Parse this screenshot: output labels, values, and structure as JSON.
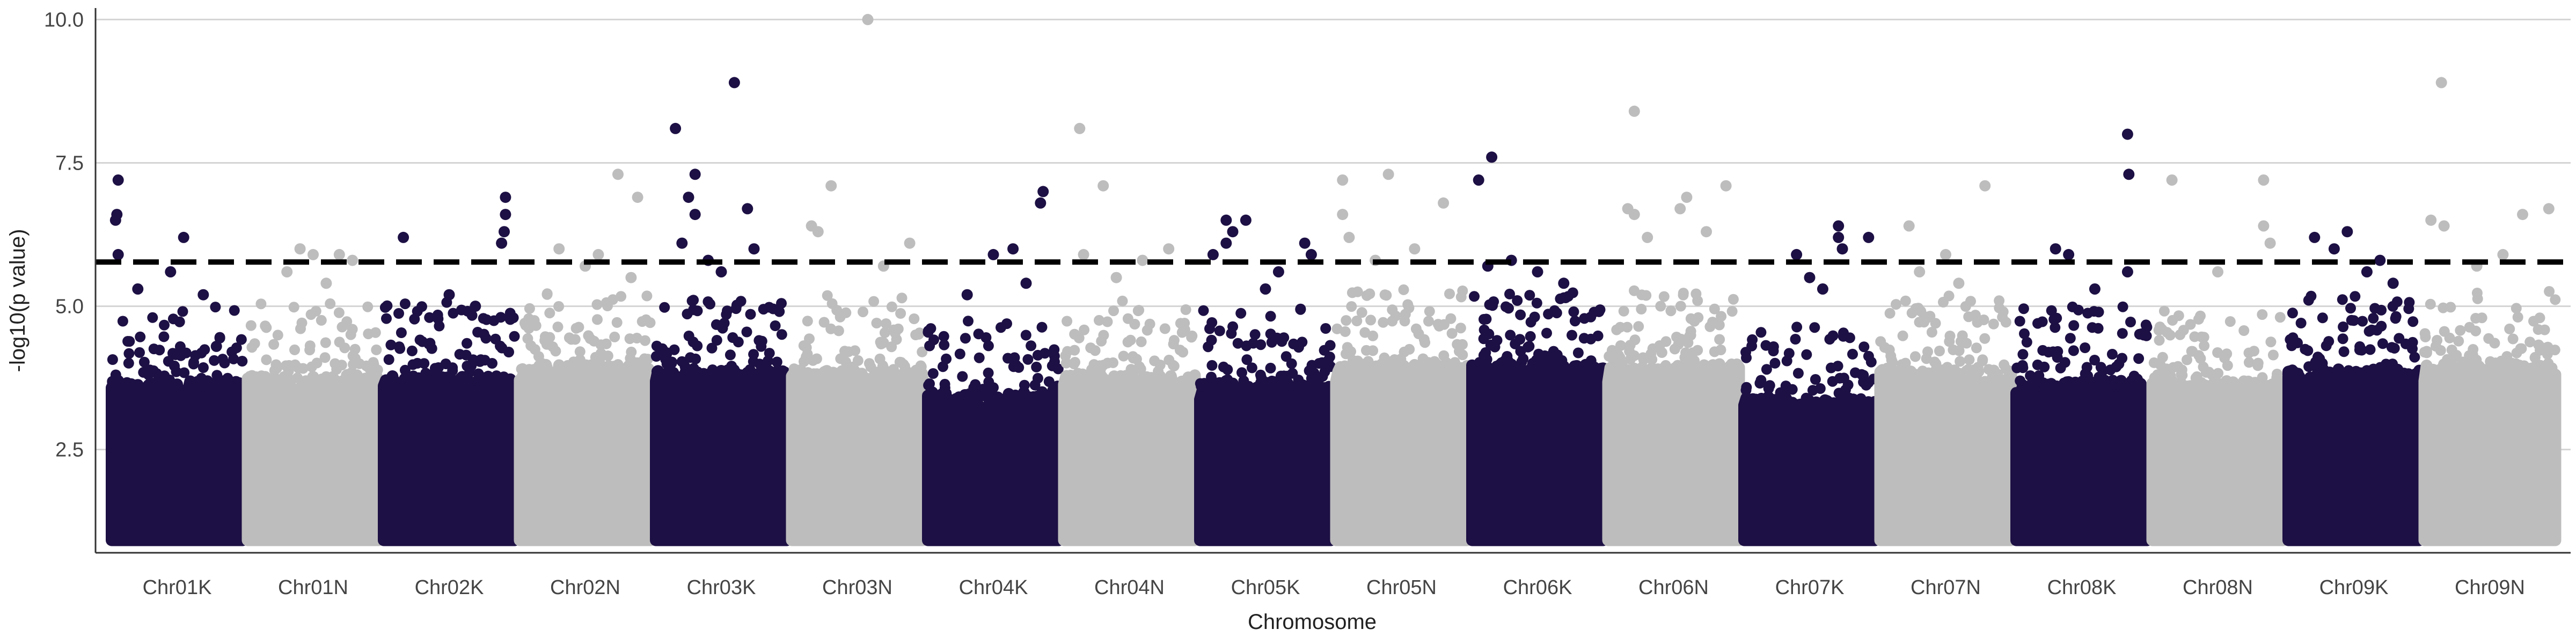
{
  "chart_data": {
    "type": "scatter",
    "title": "",
    "xlabel": "Chromosome",
    "ylabel": "-log10(p value)",
    "ylim": [
      0.7,
      10.2
    ],
    "yticks": [
      2.5,
      5.0,
      7.5,
      10.0
    ],
    "ytick_labels": [
      "2.5",
      "5.0",
      "7.5",
      "10.0"
    ],
    "threshold": 5.77,
    "grid": "horizontal major lines",
    "legend": "none",
    "colors": {
      "K": "#1d1044",
      "N": "#bdbdbd",
      "threshold_line": "#000000"
    },
    "chromosomes": [
      {
        "name": "Chr01K",
        "bulk_max": 3.6,
        "peaks": [
          [
            0.05,
            7.2
          ],
          [
            0.04,
            6.6
          ],
          [
            0.03,
            6.5
          ],
          [
            0.05,
            5.9
          ],
          [
            0.55,
            6.2
          ],
          [
            0.45,
            5.6
          ],
          [
            0.2,
            5.3
          ],
          [
            0.7,
            5.2
          ],
          [
            0.8,
            4.3
          ]
        ]
      },
      {
        "name": "Chr01N",
        "bulk_max": 3.7,
        "peaks": [
          [
            0.4,
            6.0
          ],
          [
            0.5,
            5.9
          ],
          [
            0.7,
            5.9
          ],
          [
            0.8,
            5.8
          ],
          [
            0.3,
            5.6
          ],
          [
            0.6,
            5.4
          ]
        ]
      },
      {
        "name": "Chr02K",
        "bulk_max": 3.7,
        "peaks": [
          [
            0.15,
            6.2
          ],
          [
            0.93,
            6.9
          ],
          [
            0.93,
            6.6
          ],
          [
            0.92,
            6.3
          ],
          [
            0.9,
            6.1
          ],
          [
            0.5,
            5.2
          ],
          [
            0.7,
            5.0
          ]
        ]
      },
      {
        "name": "Chr02N",
        "bulk_max": 3.9,
        "peaks": [
          [
            0.75,
            7.3
          ],
          [
            0.9,
            6.9
          ],
          [
            0.3,
            6.0
          ],
          [
            0.6,
            5.9
          ],
          [
            0.5,
            5.7
          ],
          [
            0.85,
            5.5
          ]
        ]
      },
      {
        "name": "Chr03K",
        "bulk_max": 3.8,
        "peaks": [
          [
            0.15,
            8.1
          ],
          [
            0.6,
            8.9
          ],
          [
            0.3,
            7.3
          ],
          [
            0.25,
            6.9
          ],
          [
            0.3,
            6.6
          ],
          [
            0.7,
            6.7
          ],
          [
            0.2,
            6.1
          ],
          [
            0.75,
            6.0
          ],
          [
            0.4,
            5.8
          ],
          [
            0.5,
            5.6
          ]
        ]
      },
      {
        "name": "Chr03N",
        "bulk_max": 3.8,
        "peaks": [
          [
            0.58,
            10.0
          ],
          [
            0.3,
            7.1
          ],
          [
            0.15,
            6.4
          ],
          [
            0.2,
            6.3
          ],
          [
            0.9,
            6.1
          ],
          [
            0.7,
            5.7
          ]
        ]
      },
      {
        "name": "Chr04K",
        "bulk_max": 3.4,
        "peaks": [
          [
            0.88,
            7.0
          ],
          [
            0.86,
            6.8
          ],
          [
            0.65,
            6.0
          ],
          [
            0.5,
            5.9
          ],
          [
            0.3,
            5.2
          ],
          [
            0.75,
            5.4
          ]
        ]
      },
      {
        "name": "Chr04N",
        "bulk_max": 3.7,
        "peaks": [
          [
            0.12,
            8.1
          ],
          [
            0.3,
            7.1
          ],
          [
            0.15,
            5.9
          ],
          [
            0.8,
            6.0
          ],
          [
            0.6,
            5.8
          ],
          [
            0.4,
            5.5
          ]
        ]
      },
      {
        "name": "Chr05K",
        "bulk_max": 3.6,
        "peaks": [
          [
            0.2,
            6.5
          ],
          [
            0.35,
            6.5
          ],
          [
            0.25,
            6.3
          ],
          [
            0.2,
            6.1
          ],
          [
            0.8,
            6.1
          ],
          [
            0.85,
            5.9
          ],
          [
            0.1,
            5.9
          ],
          [
            0.6,
            5.6
          ],
          [
            0.5,
            5.3
          ]
        ]
      },
      {
        "name": "Chr05N",
        "bulk_max": 3.9,
        "peaks": [
          [
            0.05,
            7.2
          ],
          [
            0.4,
            7.3
          ],
          [
            0.82,
            6.8
          ],
          [
            0.05,
            6.6
          ],
          [
            0.1,
            6.2
          ],
          [
            0.6,
            6.0
          ],
          [
            0.3,
            5.8
          ]
        ]
      },
      {
        "name": "Chr06K",
        "bulk_max": 3.9,
        "peaks": [
          [
            0.15,
            7.6
          ],
          [
            0.05,
            7.2
          ],
          [
            0.3,
            5.8
          ],
          [
            0.12,
            5.7
          ],
          [
            0.5,
            5.6
          ],
          [
            0.7,
            5.4
          ]
        ]
      },
      {
        "name": "Chr06N",
        "bulk_max": 3.9,
        "peaks": [
          [
            0.2,
            8.4
          ],
          [
            0.15,
            6.7
          ],
          [
            0.2,
            6.6
          ],
          [
            0.6,
            6.9
          ],
          [
            0.55,
            6.7
          ],
          [
            0.9,
            7.1
          ],
          [
            0.75,
            6.3
          ],
          [
            0.3,
            6.2
          ]
        ]
      },
      {
        "name": "Chr07K",
        "bulk_max": 3.3,
        "peaks": [
          [
            0.72,
            6.4
          ],
          [
            0.72,
            6.2
          ],
          [
            0.75,
            6.0
          ],
          [
            0.95,
            6.2
          ],
          [
            0.4,
            5.9
          ],
          [
            0.5,
            5.5
          ],
          [
            0.6,
            5.3
          ]
        ]
      },
      {
        "name": "Chr07N",
        "bulk_max": 3.8,
        "peaks": [
          [
            0.22,
            6.4
          ],
          [
            0.8,
            7.1
          ],
          [
            0.5,
            5.9
          ],
          [
            0.3,
            5.6
          ],
          [
            0.6,
            5.4
          ]
        ]
      },
      {
        "name": "Chr08K",
        "bulk_max": 3.6,
        "peaks": [
          [
            0.85,
            8.0
          ],
          [
            0.86,
            7.3
          ],
          [
            0.3,
            6.0
          ],
          [
            0.4,
            5.9
          ],
          [
            0.85,
            5.6
          ],
          [
            0.6,
            5.3
          ]
        ]
      },
      {
        "name": "Chr08N",
        "bulk_max": 3.6,
        "peaks": [
          [
            0.15,
            7.2
          ],
          [
            0.85,
            7.2
          ],
          [
            0.85,
            6.4
          ],
          [
            0.9,
            6.1
          ],
          [
            0.5,
            5.6
          ]
        ]
      },
      {
        "name": "Chr09K",
        "bulk_max": 3.8,
        "peaks": [
          [
            0.2,
            6.2
          ],
          [
            0.45,
            6.3
          ],
          [
            0.35,
            6.0
          ],
          [
            0.7,
            5.8
          ],
          [
            0.6,
            5.6
          ],
          [
            0.8,
            5.4
          ]
        ]
      },
      {
        "name": "Chr09N",
        "bulk_max": 3.9,
        "peaks": [
          [
            0.13,
            8.9
          ],
          [
            0.95,
            6.7
          ],
          [
            0.75,
            6.6
          ],
          [
            0.05,
            6.5
          ],
          [
            0.15,
            6.4
          ],
          [
            0.6,
            5.9
          ],
          [
            0.4,
            5.7
          ]
        ]
      }
    ]
  }
}
